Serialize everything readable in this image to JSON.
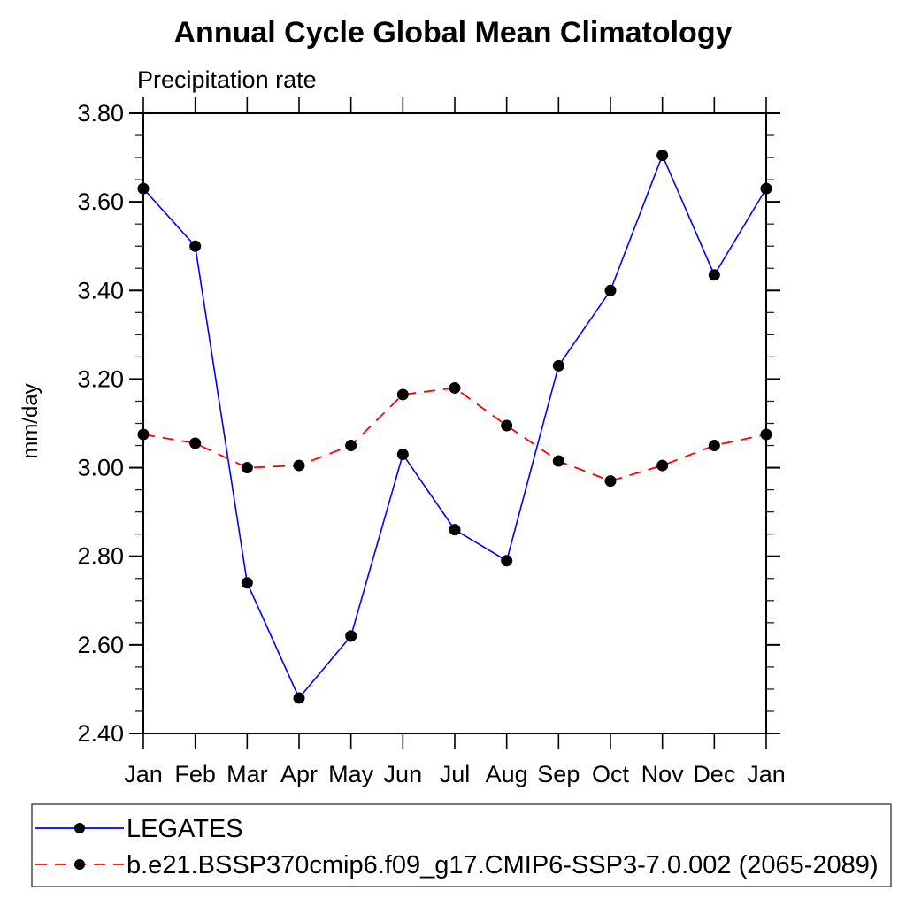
{
  "page": {
    "background": "#ffffff"
  },
  "chart_data": {
    "type": "line",
    "title": "Annual Cycle Global Mean Climatology",
    "subtitle": "Precipitation rate",
    "ylabel": "mm/day",
    "xlabel": "",
    "categories": [
      "Jan",
      "Feb",
      "Mar",
      "Apr",
      "May",
      "Jun",
      "Jul",
      "Aug",
      "Sep",
      "Oct",
      "Nov",
      "Dec",
      "Jan"
    ],
    "ylim": [
      2.4,
      3.8
    ],
    "y_major_step": 0.2,
    "y_minor_step": 0.05,
    "y_tick_decimals": 2,
    "grid": false,
    "legend_position": "bottom-box",
    "axis_color": "#000000",
    "text_color": "#000000",
    "marker_color": "#000000",
    "series": [
      {
        "name": "LEGATES",
        "color": "#0000ff",
        "line_style": "solid",
        "marker": "filled-circle",
        "values": [
          3.63,
          3.5,
          2.74,
          2.48,
          2.62,
          3.03,
          2.86,
          2.79,
          3.23,
          3.4,
          3.705,
          3.435,
          3.63
        ]
      },
      {
        "name": "b.e21.BSSP370cmip6.f09_g17.CMIP6-SSP3-7.0.002 (2065-2089)",
        "color": "#ff0000",
        "line_style": "dashed",
        "marker": "filled-circle",
        "values": [
          3.075,
          3.055,
          3.0,
          3.005,
          3.05,
          3.165,
          3.18,
          3.095,
          3.015,
          2.97,
          3.005,
          3.05,
          3.075
        ]
      }
    ]
  }
}
